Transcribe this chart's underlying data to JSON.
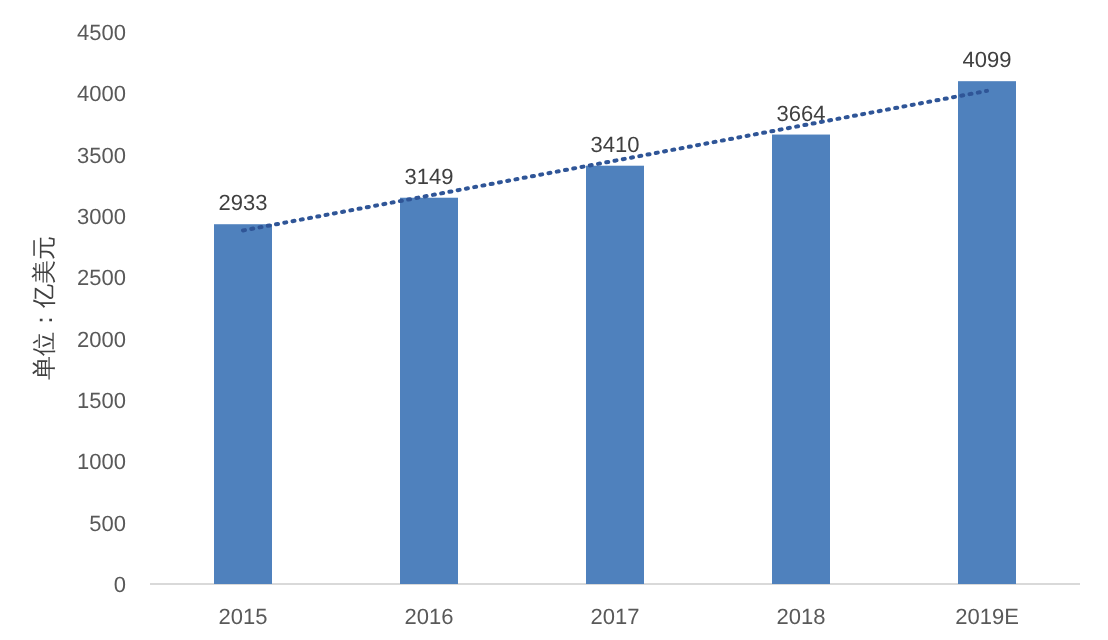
{
  "chart_data": {
    "type": "bar",
    "ylabel": "单位：亿美元",
    "categories": [
      "2015",
      "2016",
      "2017",
      "2018",
      "2019E"
    ],
    "ylim": [
      0,
      4500
    ],
    "yticks": [
      0,
      500,
      1000,
      1500,
      2000,
      2500,
      3000,
      3500,
      4000,
      4500
    ],
    "series": [
      {
        "type": "bar",
        "color": "#4f81bd",
        "values": [
          2933,
          3149,
          3410,
          3664,
          4099
        ],
        "value_labels": [
          "2933",
          "3149",
          "3410",
          "3664",
          "4099"
        ]
      },
      {
        "type": "line",
        "color": "#2f5597",
        "line_style": "dotted",
        "values": [
          2882,
          3166,
          3451,
          3736,
          4020
        ]
      }
    ]
  }
}
